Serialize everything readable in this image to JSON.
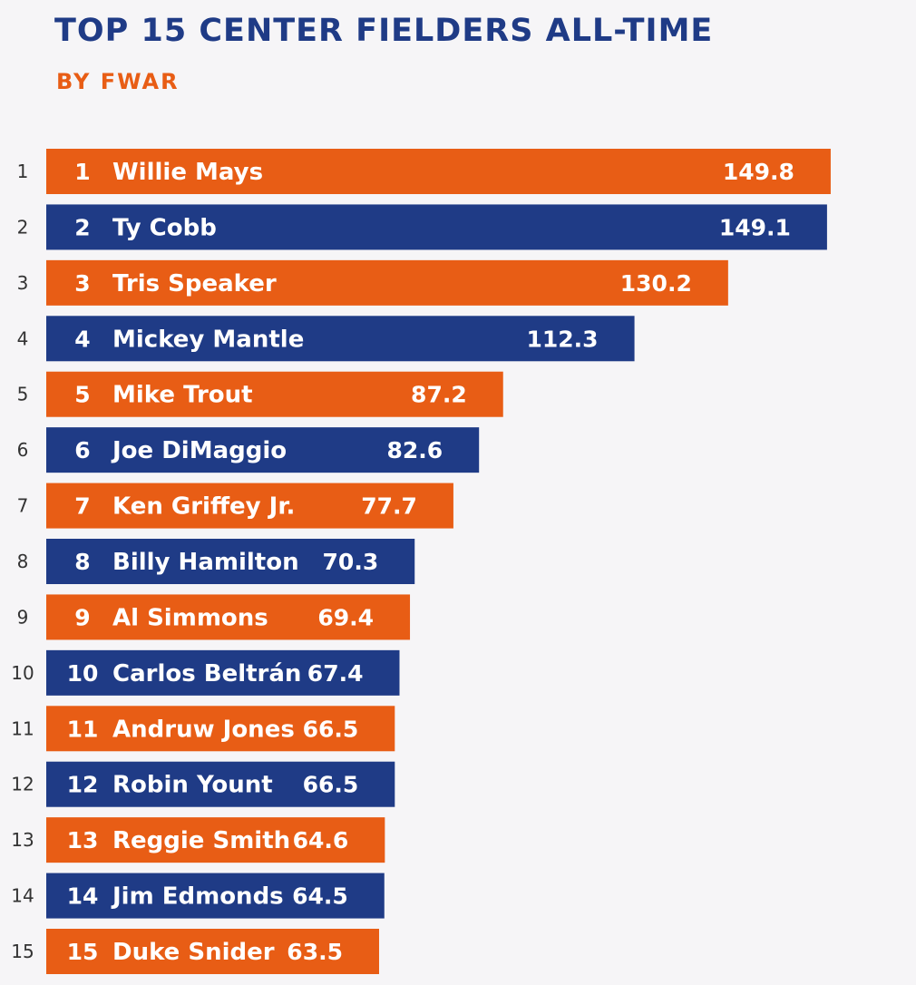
{
  "title": "TOP 15 CENTER FIELDERS ALL-TIME",
  "subtitle": "BY FWAR",
  "colors": {
    "orange": "#e85d15",
    "blue": "#1f3b86",
    "title": "#1f3b86",
    "subtitle": "#e85d15"
  },
  "chart_data": {
    "type": "bar",
    "orientation": "horizontal",
    "title": "TOP 15 CENTER FIELDERS ALL-TIME",
    "subtitle": "BY FWAR",
    "xlabel": "",
    "ylabel": "",
    "grid": false,
    "ranks": [
      "1",
      "2",
      "3",
      "4",
      "5",
      "6",
      "7",
      "8",
      "9",
      "10",
      "11",
      "12",
      "13",
      "14",
      "15"
    ],
    "categories": [
      "Willie Mays",
      "Ty Cobb",
      "Tris Speaker",
      "Mickey Mantle",
      "Mike Trout",
      "Joe DiMaggio",
      "Ken Griffey Jr.",
      "Billy Hamilton",
      "Al Simmons",
      "Carlos Beltrán",
      "Andruw Jones",
      "Robin Yount",
      "Reggie Smith",
      "Jim Edmonds",
      "Duke Snider"
    ],
    "values": [
      149.8,
      149.1,
      130.2,
      112.3,
      87.2,
      82.6,
      77.7,
      70.3,
      69.4,
      67.4,
      66.5,
      66.5,
      64.6,
      64.5,
      63.5
    ],
    "value_labels": [
      "149.8",
      "149.1",
      "130.2",
      "112.3",
      "87.2",
      "82.6",
      "77.7",
      "70.3",
      "69.4",
      "67.4",
      "66.5",
      "66.5",
      "64.6",
      "64.5",
      "63.5"
    ],
    "bar_colors": [
      "orange",
      "blue",
      "orange",
      "blue",
      "orange",
      "blue",
      "orange",
      "blue",
      "orange",
      "blue",
      "orange",
      "blue",
      "orange",
      "blue",
      "orange"
    ]
  }
}
